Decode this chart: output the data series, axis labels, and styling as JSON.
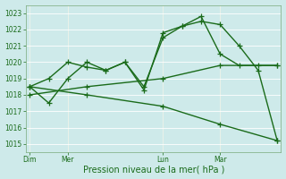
{
  "bg_color": "#ceeaea",
  "line_color": "#1a6b1a",
  "marker": "+",
  "marker_size": 4,
  "linewidth": 1.0,
  "ylim": [
    1014.5,
    1023.5
  ],
  "yticks": [
    1015,
    1016,
    1017,
    1018,
    1019,
    1020,
    1021,
    1022,
    1023
  ],
  "xlabel": "Pression niveau de la mer( hPa )",
  "xlabel_fontsize": 7,
  "xtick_labels": [
    "Dim",
    "Mer",
    "Lun",
    "Mar"
  ],
  "xtick_positions": [
    0,
    2,
    7,
    10
  ],
  "vline_positions": [
    0,
    2,
    7,
    10
  ],
  "xlim": [
    -0.2,
    13.2
  ],
  "series": [
    {
      "x": [
        0,
        1,
        2,
        3,
        4,
        5,
        6,
        7,
        8,
        9,
        10,
        11,
        12,
        13
      ],
      "y": [
        1018.5,
        1019.0,
        1020.0,
        1019.7,
        1019.5,
        1020.0,
        1018.5,
        1021.5,
        1022.2,
        1022.8,
        1020.5,
        1019.8,
        1019.8,
        1019.8
      ]
    },
    {
      "x": [
        0,
        1,
        2,
        3,
        4,
        5,
        6,
        7,
        8,
        9,
        10,
        11,
        12,
        13
      ],
      "y": [
        1018.5,
        1017.5,
        1019.0,
        1020.0,
        1019.5,
        1020.0,
        1018.3,
        1021.8,
        1022.2,
        1022.5,
        1022.3,
        1021.0,
        1019.5,
        1015.2
      ]
    },
    {
      "x": [
        0,
        3,
        7,
        10,
        13
      ],
      "y": [
        1018.0,
        1018.5,
        1019.0,
        1019.8,
        1019.8
      ]
    },
    {
      "x": [
        0,
        3,
        7,
        10,
        13
      ],
      "y": [
        1018.5,
        1018.0,
        1017.3,
        1016.2,
        1015.2
      ]
    }
  ]
}
